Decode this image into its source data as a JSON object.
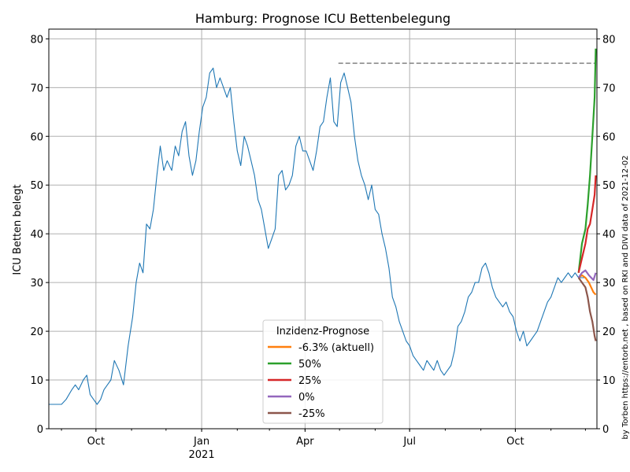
{
  "chart_data": {
    "type": "line",
    "title": "Hamburg: Prognose ICU Bettenbelegung",
    "xlabel": "",
    "ylabel": "ICU Betten belegt",
    "credit": "by Torben https://entorb.net , based on RKI and DIVI data of 2021-12-02",
    "ylim": [
      0,
      82
    ],
    "yticks": [
      0,
      10,
      20,
      30,
      40,
      50,
      60,
      70,
      80
    ],
    "xlim": [
      "2020-08-21",
      "2021-12-11"
    ],
    "xticks": [
      {
        "date": "2020-10-01",
        "label": "Oct",
        "sublabel": ""
      },
      {
        "date": "2021-01-01",
        "label": "Jan",
        "sublabel": "2021"
      },
      {
        "date": "2021-04-01",
        "label": "Apr",
        "sublabel": ""
      },
      {
        "date": "2021-07-01",
        "label": "Jul",
        "sublabel": ""
      },
      {
        "date": "2021-10-01",
        "label": "Oct",
        "sublabel": ""
      }
    ],
    "grid": true,
    "legend_title": "Inzidenz-Prognose",
    "legend_position": "bottom-center",
    "historic": {
      "name": "ICU belegt",
      "color": "#1f77b4",
      "points": [
        [
          "2020-08-21",
          5
        ],
        [
          "2020-09-01",
          5
        ],
        [
          "2020-09-05",
          6
        ],
        [
          "2020-09-10",
          8
        ],
        [
          "2020-09-13",
          9
        ],
        [
          "2020-09-16",
          8
        ],
        [
          "2020-09-20",
          10
        ],
        [
          "2020-09-23",
          11
        ],
        [
          "2020-09-26",
          7
        ],
        [
          "2020-09-29",
          6
        ],
        [
          "2020-10-02",
          5
        ],
        [
          "2020-10-05",
          6
        ],
        [
          "2020-10-08",
          8
        ],
        [
          "2020-10-11",
          9
        ],
        [
          "2020-10-14",
          10
        ],
        [
          "2020-10-17",
          14
        ],
        [
          "2020-10-21",
          12
        ],
        [
          "2020-10-25",
          9
        ],
        [
          "2020-10-29",
          17
        ],
        [
          "2020-11-02",
          23
        ],
        [
          "2020-11-05",
          30
        ],
        [
          "2020-11-08",
          34
        ],
        [
          "2020-11-11",
          32
        ],
        [
          "2020-11-14",
          42
        ],
        [
          "2020-11-17",
          41
        ],
        [
          "2020-11-20",
          45
        ],
        [
          "2020-11-23",
          52
        ],
        [
          "2020-11-26",
          58
        ],
        [
          "2020-11-29",
          53
        ],
        [
          "2020-12-02",
          55
        ],
        [
          "2020-12-06",
          53
        ],
        [
          "2020-12-09",
          58
        ],
        [
          "2020-12-12",
          56
        ],
        [
          "2020-12-15",
          61
        ],
        [
          "2020-12-18",
          63
        ],
        [
          "2020-12-21",
          56
        ],
        [
          "2020-12-24",
          52
        ],
        [
          "2020-12-27",
          55
        ],
        [
          "2020-12-30",
          61
        ],
        [
          "2021-01-02",
          66
        ],
        [
          "2021-01-05",
          68
        ],
        [
          "2021-01-08",
          73
        ],
        [
          "2021-01-11",
          74
        ],
        [
          "2021-01-14",
          70
        ],
        [
          "2021-01-17",
          72
        ],
        [
          "2021-01-20",
          70
        ],
        [
          "2021-01-23",
          68
        ],
        [
          "2021-01-26",
          70
        ],
        [
          "2021-01-29",
          63
        ],
        [
          "2021-02-01",
          57
        ],
        [
          "2021-02-04",
          54
        ],
        [
          "2021-02-07",
          60
        ],
        [
          "2021-02-10",
          58
        ],
        [
          "2021-02-13",
          55
        ],
        [
          "2021-02-16",
          52
        ],
        [
          "2021-02-19",
          47
        ],
        [
          "2021-02-22",
          45
        ],
        [
          "2021-02-25",
          41
        ],
        [
          "2021-02-28",
          37
        ],
        [
          "2021-03-03",
          39
        ],
        [
          "2021-03-06",
          41
        ],
        [
          "2021-03-09",
          52
        ],
        [
          "2021-03-12",
          53
        ],
        [
          "2021-03-15",
          49
        ],
        [
          "2021-03-18",
          50
        ],
        [
          "2021-03-21",
          52
        ],
        [
          "2021-03-24",
          58
        ],
        [
          "2021-03-27",
          60
        ],
        [
          "2021-03-30",
          57
        ],
        [
          "2021-04-02",
          57
        ],
        [
          "2021-04-05",
          55
        ],
        [
          "2021-04-08",
          53
        ],
        [
          "2021-04-11",
          57
        ],
        [
          "2021-04-14",
          62
        ],
        [
          "2021-04-17",
          63
        ],
        [
          "2021-04-20",
          68
        ],
        [
          "2021-04-23",
          72
        ],
        [
          "2021-04-26",
          63
        ],
        [
          "2021-04-29",
          62
        ],
        [
          "2021-05-02",
          71
        ],
        [
          "2021-05-05",
          73
        ],
        [
          "2021-05-08",
          70
        ],
        [
          "2021-05-11",
          67
        ],
        [
          "2021-05-14",
          60
        ],
        [
          "2021-05-17",
          55
        ],
        [
          "2021-05-20",
          52
        ],
        [
          "2021-05-23",
          50
        ],
        [
          "2021-05-26",
          47
        ],
        [
          "2021-05-29",
          50
        ],
        [
          "2021-06-01",
          45
        ],
        [
          "2021-06-04",
          44
        ],
        [
          "2021-06-07",
          40
        ],
        [
          "2021-06-10",
          37
        ],
        [
          "2021-06-13",
          33
        ],
        [
          "2021-06-16",
          27
        ],
        [
          "2021-06-19",
          25
        ],
        [
          "2021-06-22",
          22
        ],
        [
          "2021-06-25",
          20
        ],
        [
          "2021-06-28",
          18
        ],
        [
          "2021-07-01",
          17
        ],
        [
          "2021-07-04",
          15
        ],
        [
          "2021-07-07",
          14
        ],
        [
          "2021-07-10",
          13
        ],
        [
          "2021-07-13",
          12
        ],
        [
          "2021-07-16",
          14
        ],
        [
          "2021-07-19",
          13
        ],
        [
          "2021-07-22",
          12
        ],
        [
          "2021-07-25",
          14
        ],
        [
          "2021-07-28",
          12
        ],
        [
          "2021-07-31",
          11
        ],
        [
          "2021-08-03",
          12
        ],
        [
          "2021-08-06",
          13
        ],
        [
          "2021-08-09",
          16
        ],
        [
          "2021-08-12",
          21
        ],
        [
          "2021-08-15",
          22
        ],
        [
          "2021-08-18",
          24
        ],
        [
          "2021-08-21",
          27
        ],
        [
          "2021-08-24",
          28
        ],
        [
          "2021-08-27",
          30
        ],
        [
          "2021-08-30",
          30
        ],
        [
          "2021-09-02",
          33
        ],
        [
          "2021-09-05",
          34
        ],
        [
          "2021-09-08",
          32
        ],
        [
          "2021-09-11",
          29
        ],
        [
          "2021-09-14",
          27
        ],
        [
          "2021-09-17",
          26
        ],
        [
          "2021-09-20",
          25
        ],
        [
          "2021-09-23",
          26
        ],
        [
          "2021-09-26",
          24
        ],
        [
          "2021-09-29",
          23
        ],
        [
          "2021-10-02",
          20
        ],
        [
          "2021-10-05",
          18
        ],
        [
          "2021-10-08",
          20
        ],
        [
          "2021-10-11",
          17
        ],
        [
          "2021-10-14",
          18
        ],
        [
          "2021-10-17",
          19
        ],
        [
          "2021-10-20",
          20
        ],
        [
          "2021-10-23",
          22
        ],
        [
          "2021-10-26",
          24
        ],
        [
          "2021-10-29",
          26
        ],
        [
          "2021-11-01",
          27
        ],
        [
          "2021-11-04",
          29
        ],
        [
          "2021-11-07",
          31
        ],
        [
          "2021-11-10",
          30
        ],
        [
          "2021-11-13",
          31
        ],
        [
          "2021-11-16",
          32
        ],
        [
          "2021-11-19",
          31
        ],
        [
          "2021-11-22",
          32
        ],
        [
          "2021-11-25",
          31
        ],
        [
          "2021-11-28",
          31
        ],
        [
          "2021-12-01",
          31
        ]
      ]
    },
    "reference_line": {
      "value": 75,
      "from": "2021-04-30",
      "to": "2021-12-10",
      "style": "dashed",
      "color": "#808080"
    },
    "series": [
      {
        "name": "-6.3% (aktuell)",
        "color": "#ff7f0e",
        "points": [
          [
            "2021-11-25",
            31
          ],
          [
            "2021-11-28",
            31.5
          ],
          [
            "2021-12-01",
            31
          ],
          [
            "2021-12-04",
            30
          ],
          [
            "2021-12-06",
            29
          ],
          [
            "2021-12-08",
            28
          ],
          [
            "2021-12-10",
            27.5
          ]
        ]
      },
      {
        "name": "50%",
        "color": "#2ca02c",
        "points": [
          [
            "2021-11-25",
            32
          ],
          [
            "2021-11-28",
            38
          ],
          [
            "2021-12-01",
            41
          ],
          [
            "2021-12-03",
            46
          ],
          [
            "2021-12-05",
            52
          ],
          [
            "2021-12-07",
            60
          ],
          [
            "2021-12-09",
            68
          ],
          [
            "2021-12-10",
            78
          ]
        ]
      },
      {
        "name": "25%",
        "color": "#d62728",
        "points": [
          [
            "2021-11-25",
            32
          ],
          [
            "2021-11-28",
            35
          ],
          [
            "2021-12-01",
            38
          ],
          [
            "2021-12-03",
            41
          ],
          [
            "2021-12-05",
            42
          ],
          [
            "2021-12-07",
            45
          ],
          [
            "2021-12-09",
            48
          ],
          [
            "2021-12-10",
            52
          ]
        ]
      },
      {
        "name": "0%",
        "color": "#9467bd",
        "points": [
          [
            "2021-11-25",
            31
          ],
          [
            "2021-11-28",
            32
          ],
          [
            "2021-12-01",
            32.5
          ],
          [
            "2021-12-04",
            31.5
          ],
          [
            "2021-12-06",
            31
          ],
          [
            "2021-12-08",
            30.5
          ],
          [
            "2021-12-10",
            32
          ]
        ]
      },
      {
        "name": "-25%",
        "color": "#8c564b",
        "points": [
          [
            "2021-11-25",
            31
          ],
          [
            "2021-11-28",
            30
          ],
          [
            "2021-12-01",
            29
          ],
          [
            "2021-12-03",
            27
          ],
          [
            "2021-12-05",
            24
          ],
          [
            "2021-12-07",
            22
          ],
          [
            "2021-12-09",
            19
          ],
          [
            "2021-12-10",
            18
          ]
        ]
      }
    ]
  }
}
